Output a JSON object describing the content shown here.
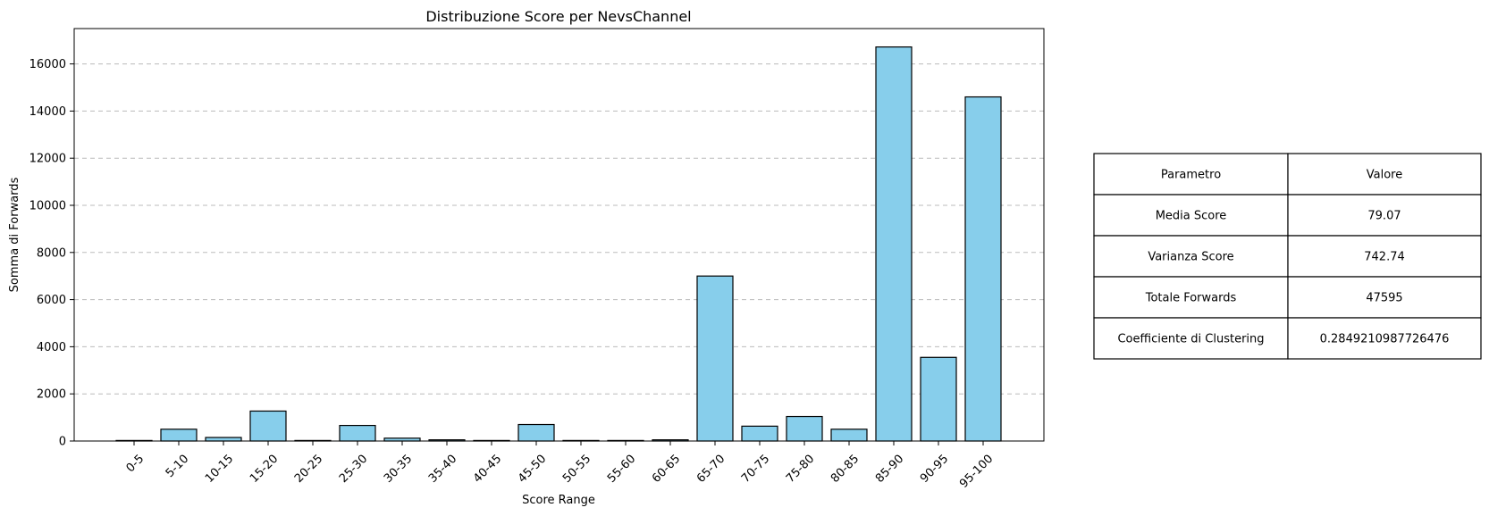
{
  "chart_data": {
    "type": "bar",
    "title": "Distribuzione Score per NevsChannel",
    "xlabel": "Score Range",
    "ylabel": "Somma di Forwards",
    "categories": [
      "0-5",
      "5-10",
      "10-15",
      "15-20",
      "20-25",
      "25-30",
      "30-35",
      "35-40",
      "40-45",
      "45-50",
      "50-55",
      "55-60",
      "60-65",
      "65-70",
      "70-75",
      "75-80",
      "80-85",
      "85-90",
      "90-95",
      "95-100"
    ],
    "values": [
      10,
      500,
      150,
      1270,
      0,
      660,
      120,
      50,
      10,
      700,
      0,
      0,
      50,
      7000,
      630,
      1040,
      500,
      16720,
      3550,
      14600
    ],
    "ylim": [
      0,
      17500
    ],
    "yticks": [
      0,
      2000,
      4000,
      6000,
      8000,
      10000,
      12000,
      14000,
      16000
    ],
    "grid": "y-dashed",
    "bar_color": "#87ceeb",
    "edge_color": "#000000"
  },
  "table": {
    "headers": [
      "Parametro",
      "Valore"
    ],
    "rows": [
      [
        "Media Score",
        "79.07"
      ],
      [
        "Varianza Score",
        "742.74"
      ],
      [
        "Totale Forwards",
        "47595"
      ],
      [
        "Coefficiente di Clustering",
        "0.2849210987726476"
      ]
    ]
  }
}
